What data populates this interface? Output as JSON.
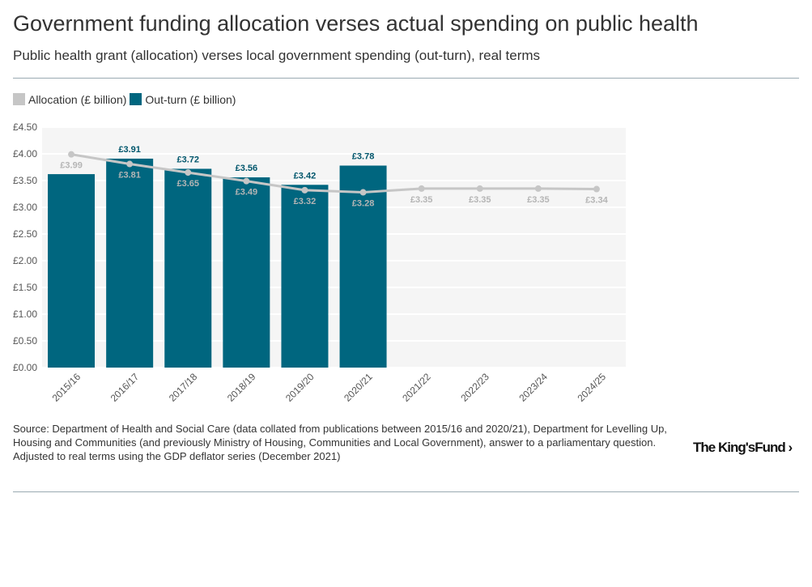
{
  "title": "Government funding allocation verses actual spending on public health",
  "subtitle": "Public health grant (allocation) verses local government spending (out-turn), real terms",
  "legend": [
    {
      "label": "Allocation (£ billion)",
      "color": "#c6c6c6"
    },
    {
      "label": "Out-turn (£ billion)",
      "color": "#00667f"
    }
  ],
  "source": [
    "Source: Department of Health and Social Care (data collated from publications between 2015/16 and 2020/21), Department for Levelling Up, Housing and Communities (and previously Ministry of Housing, Communities and Local Government), answer to a parliamentary question.",
    "Adjusted to real terms using the GDP deflator series (December 2021)"
  ],
  "logo": "The King's Fund",
  "chart_data": {
    "type": "bar+line",
    "categories": [
      "2015/16",
      "2016/17",
      "2017/18",
      "2018/19",
      "2019/20",
      "2020/21",
      "2021/22",
      "2022/23",
      "2023/24",
      "2024/25"
    ],
    "ylim": [
      0,
      4.5
    ],
    "yticks": [
      "£0.00",
      "£0.50",
      "£1.00",
      "£1.50",
      "£2.00",
      "£2.50",
      "£3.00",
      "£3.50",
      "£4.00",
      "£4.50"
    ],
    "grid": true,
    "legend_position": "top-left",
    "series": [
      {
        "name": "Out-turn (£ billion)",
        "type": "bar",
        "color": "#00667f",
        "values": [
          3.62,
          3.91,
          3.72,
          3.56,
          3.42,
          3.78,
          null,
          null,
          null,
          null
        ],
        "labels": [
          "",
          "£3.91",
          "£3.72",
          "£3.56",
          "£3.42",
          "£3.78",
          "",
          "",
          "",
          ""
        ]
      },
      {
        "name": "Allocation (£ billion)",
        "type": "line",
        "color": "#c6c6c6",
        "values": [
          3.99,
          3.81,
          3.65,
          3.49,
          3.32,
          3.28,
          3.35,
          3.35,
          3.35,
          3.34
        ],
        "labels": [
          "£3.99",
          "£3.81",
          "£3.65",
          "£3.49",
          "£3.32",
          "£3.28",
          "£3.35",
          "£3.35",
          "£3.35",
          "£3.34"
        ]
      }
    ]
  }
}
